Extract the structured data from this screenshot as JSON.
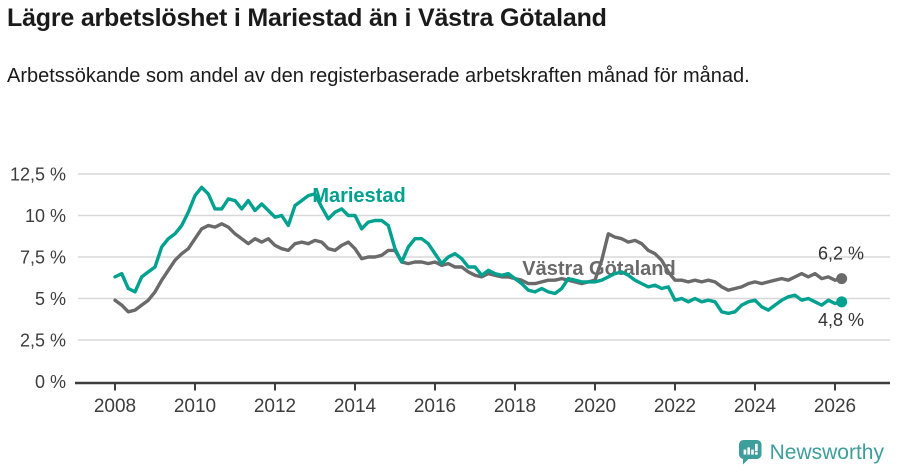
{
  "header": {
    "title": "Lägre arbetslöshet i Mariestad än i Västra Götaland",
    "subtitle": "Arbetssökande som andel av den registerbaserade arbetskraften månad för månad."
  },
  "footer": {
    "brand": "Newsworthy",
    "logo_icon": "bar-chart-speech-bubble"
  },
  "colors": {
    "mariestad": "#00a18f",
    "vastra_gotaland": "#6a6a6a",
    "axis": "#3d3d3d",
    "tick_text": "#3d3d3d",
    "grid": "#d8d8d8",
    "end_label_text": "#333333",
    "brand": "#3d9e9b",
    "title_text": "#1a1a1a"
  },
  "chart_data": {
    "type": "line",
    "title": "Lägre arbetslöshet i Mariestad än i Västra Götaland",
    "x_unit": "year",
    "x_start": 2008,
    "points_per_year": 6,
    "ylim": [
      0,
      12.5
    ],
    "grid": "horizontal",
    "legend_position": "inline-labels",
    "yticks": [
      {
        "v": 0,
        "label": "0 %"
      },
      {
        "v": 2.5,
        "label": "2,5 %"
      },
      {
        "v": 5,
        "label": "5 %"
      },
      {
        "v": 7.5,
        "label": "7,5 %"
      },
      {
        "v": 10,
        "label": "10 %"
      },
      {
        "v": 12.5,
        "label": "12,5 %"
      }
    ],
    "xticks": [
      {
        "v": 2008,
        "label": "2008"
      },
      {
        "v": 2010,
        "label": "2010"
      },
      {
        "v": 2012,
        "label": "2012"
      },
      {
        "v": 2014,
        "label": "2014"
      },
      {
        "v": 2016,
        "label": "2016"
      },
      {
        "v": 2018,
        "label": "2018"
      },
      {
        "v": 2020,
        "label": "2020"
      },
      {
        "v": 2022,
        "label": "2022"
      },
      {
        "v": 2024,
        "label": "2024"
      },
      {
        "v": 2026,
        "label": "2026"
      }
    ],
    "series": [
      {
        "name": "Västra Götaland",
        "slug": "vastra-gotaland",
        "color": "#6a6a6a",
        "end_value": 6.2,
        "label": {
          "text": "Västra Götaland",
          "x": 2020.1,
          "y": 6.8
        },
        "end_label": {
          "text": "6,2 %",
          "x": 2026.15,
          "y": 7.75
        },
        "values": [
          4.9,
          4.6,
          4.2,
          4.3,
          4.6,
          4.9,
          5.4,
          6.1,
          6.7,
          7.3,
          7.7,
          8.0,
          8.6,
          9.2,
          9.4,
          9.3,
          9.5,
          9.3,
          8.9,
          8.6,
          8.3,
          8.6,
          8.4,
          8.6,
          8.2,
          8.0,
          7.9,
          8.3,
          8.4,
          8.3,
          8.5,
          8.4,
          8.0,
          7.9,
          8.2,
          8.4,
          8.0,
          7.4,
          7.5,
          7.5,
          7.6,
          7.9,
          7.9,
          7.2,
          7.1,
          7.2,
          7.2,
          7.1,
          7.2,
          7.0,
          7.1,
          6.9,
          6.9,
          6.6,
          6.4,
          6.3,
          6.5,
          6.4,
          6.3,
          6.3,
          6.2,
          6.1,
          5.9,
          5.9,
          6.0,
          6.1,
          6.1,
          6.2,
          6.1,
          6.0,
          5.9,
          6.0,
          6.1,
          7.3,
          8.9,
          8.7,
          8.6,
          8.4,
          8.5,
          8.3,
          7.9,
          7.7,
          7.3,
          6.6,
          6.1,
          6.1,
          6.0,
          6.1,
          6.0,
          6.1,
          6.0,
          5.7,
          5.5,
          5.6,
          5.7,
          5.9,
          6.0,
          5.9,
          6.0,
          6.1,
          6.2,
          6.1,
          6.3,
          6.5,
          6.3,
          6.5,
          6.2,
          6.3,
          6.1,
          6.2
        ]
      },
      {
        "name": "Mariestad",
        "slug": "mariestad",
        "color": "#00a18f",
        "end_value": 4.8,
        "label": {
          "text": "Mariestad",
          "x": 2014.1,
          "y": 11.2
        },
        "end_label": {
          "text": "4,8 %",
          "x": 2026.15,
          "y": 3.75
        },
        "values": [
          6.3,
          6.5,
          5.6,
          5.4,
          6.3,
          6.6,
          6.9,
          8.1,
          8.6,
          8.9,
          9.4,
          10.2,
          11.2,
          11.7,
          11.3,
          10.4,
          10.4,
          11.0,
          10.9,
          10.4,
          10.9,
          10.3,
          10.7,
          10.3,
          9.9,
          10.0,
          9.4,
          10.6,
          10.9,
          11.2,
          11.3,
          10.5,
          9.8,
          10.2,
          10.4,
          10.0,
          10.0,
          9.2,
          9.6,
          9.7,
          9.7,
          9.4,
          8.0,
          7.2,
          8.1,
          8.6,
          8.6,
          8.3,
          7.7,
          7.1,
          7.5,
          7.7,
          7.4,
          6.9,
          6.9,
          6.4,
          6.7,
          6.5,
          6.4,
          6.5,
          6.2,
          5.9,
          5.5,
          5.4,
          5.6,
          5.4,
          5.3,
          5.6,
          6.2,
          6.1,
          6.0,
          6.0,
          6.0,
          6.1,
          6.3,
          6.5,
          6.6,
          6.4,
          6.1,
          5.9,
          5.7,
          5.8,
          5.6,
          5.7,
          4.9,
          5.0,
          4.8,
          5.0,
          4.8,
          4.9,
          4.8,
          4.2,
          4.1,
          4.2,
          4.6,
          4.8,
          4.9,
          4.5,
          4.3,
          4.6,
          4.9,
          5.1,
          5.2,
          4.9,
          5.0,
          4.8,
          4.6,
          4.9,
          4.7,
          4.8
        ]
      }
    ]
  }
}
